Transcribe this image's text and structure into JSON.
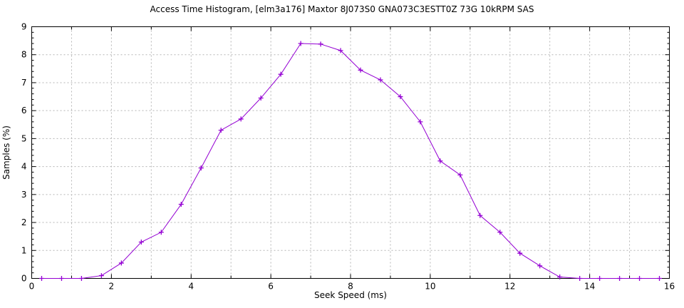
{
  "chart_data": {
    "type": "line",
    "title": "Access Time Histogram, [elm3a176] Maxtor 8J073S0 GNA073C3ESTT0Z 73G 10kRPM SAS",
    "xlabel": "Seek Speed (ms)",
    "ylabel": "Samples (%)",
    "xlim": [
      0,
      16
    ],
    "ylim": [
      0,
      9
    ],
    "grid": true,
    "legend": "none",
    "marker": "plus",
    "line_color": "#9400d3",
    "grid_color": "#b5b5b5",
    "border_color": "#000000",
    "x_grid_step": 1,
    "x_label_step": 2,
    "y_grid_step": 1,
    "y_minor_tick_step": 0.2,
    "x_tick_labels": [
      "0",
      "2",
      "4",
      "6",
      "8",
      "10",
      "12",
      "14",
      "16"
    ],
    "y_tick_labels": [
      "0",
      "1",
      "2",
      "3",
      "4",
      "5",
      "6",
      "7",
      "8",
      "9"
    ],
    "x": [
      0.25,
      0.75,
      1.25,
      1.75,
      2.25,
      2.75,
      3.25,
      3.75,
      4.25,
      4.75,
      5.25,
      5.75,
      6.25,
      6.75,
      7.25,
      7.75,
      8.25,
      8.75,
      9.25,
      9.75,
      10.25,
      10.75,
      11.25,
      11.75,
      12.25,
      12.75,
      13.25,
      13.75,
      14.25,
      14.75,
      15.25,
      15.75
    ],
    "y": [
      0,
      0,
      0,
      0.1,
      0.55,
      1.3,
      1.65,
      2.65,
      3.95,
      5.3,
      5.7,
      6.45,
      7.3,
      8.4,
      8.38,
      8.15,
      7.45,
      7.1,
      6.5,
      5.6,
      4.2,
      3.7,
      2.25,
      1.65,
      0.9,
      0.45,
      0.05,
      0,
      0,
      0,
      0,
      0
    ]
  }
}
